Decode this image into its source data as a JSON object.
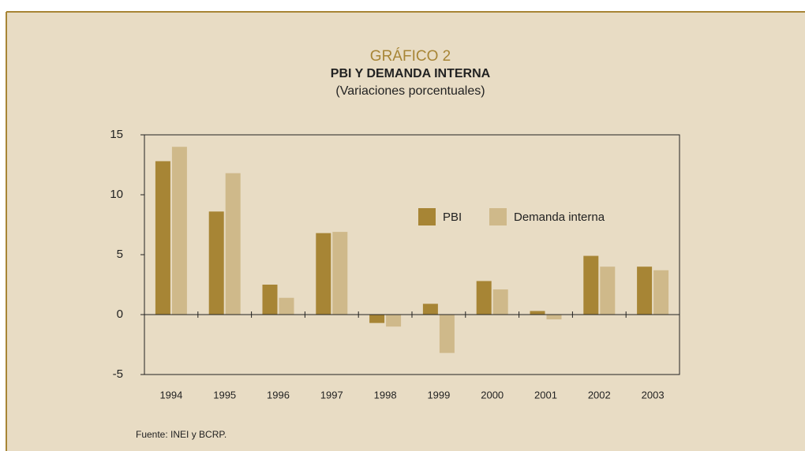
{
  "chart_data": {
    "type": "bar",
    "title": "GRÁFICO 2",
    "subtitle": "PBI Y DEMANDA INTERNA",
    "y_label": "(Variaciones porcentuales)",
    "source": "Fuente: INEI y BCRP.",
    "categories": [
      "1994",
      "1995",
      "1996",
      "1997",
      "1998",
      "1999",
      "2000",
      "2001",
      "2002",
      "2003"
    ],
    "series": [
      {
        "name": "PBI",
        "color": "#a78535",
        "values": [
          12.8,
          8.6,
          2.5,
          6.8,
          -0.7,
          0.9,
          2.8,
          0.3,
          4.9,
          4.0
        ]
      },
      {
        "name": "Demanda interna",
        "color": "#cfb98a",
        "values": [
          14.0,
          11.8,
          1.4,
          6.9,
          -1.0,
          -3.2,
          2.1,
          -0.4,
          4.0,
          3.7
        ]
      }
    ],
    "ylim": [
      -5,
      15
    ],
    "yticks": [
      -5,
      0,
      5,
      10,
      15
    ]
  }
}
